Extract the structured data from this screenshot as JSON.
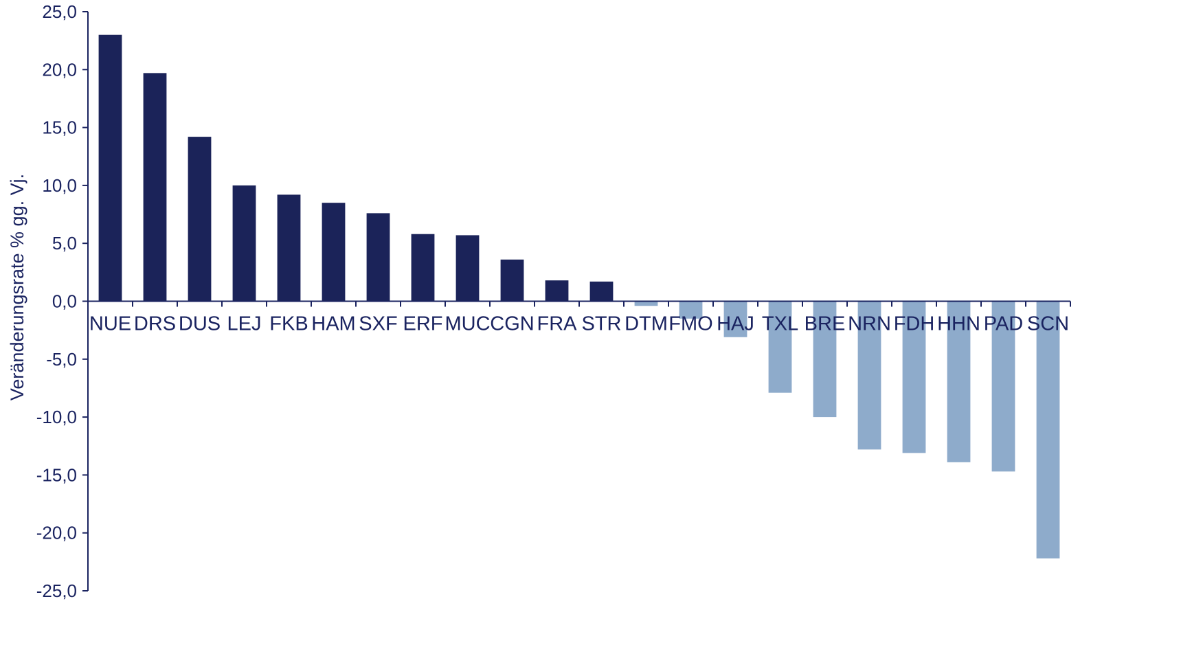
{
  "chart_data": {
    "type": "bar",
    "title": "",
    "xlabel": "",
    "ylabel": "Veränderungsrate % gg. Vj.",
    "ylim": [
      -25,
      25
    ],
    "ytick_step": 5,
    "ytick_labels": [
      "25,0",
      "20,0",
      "15,0",
      "10,0",
      "5,0",
      "0,0",
      "-5,0",
      "-10,0",
      "-15,0",
      "-20,0",
      "-25,0"
    ],
    "grid": false,
    "legend": "none",
    "colors": {
      "positive": "#1b2359",
      "negative": "#8eabcb",
      "axis": "#1a2360",
      "text": "#1a2360"
    },
    "categories": [
      "NUE",
      "DRS",
      "DUS",
      "LEJ",
      "FKB",
      "HAM",
      "SXF",
      "ERF",
      "MUC",
      "CGN",
      "FRA",
      "STR",
      "DTM",
      "FMO",
      "HAJ",
      "TXL",
      "BRE",
      "NRN",
      "FDH",
      "HHN",
      "PAD",
      "SCN"
    ],
    "values": [
      23.0,
      19.7,
      14.2,
      10.0,
      9.2,
      8.5,
      7.6,
      5.8,
      5.7,
      3.6,
      1.8,
      1.7,
      -0.4,
      -1.5,
      -3.1,
      -7.9,
      -10.0,
      -12.8,
      -13.1,
      -13.9,
      -14.7,
      -22.2
    ]
  }
}
